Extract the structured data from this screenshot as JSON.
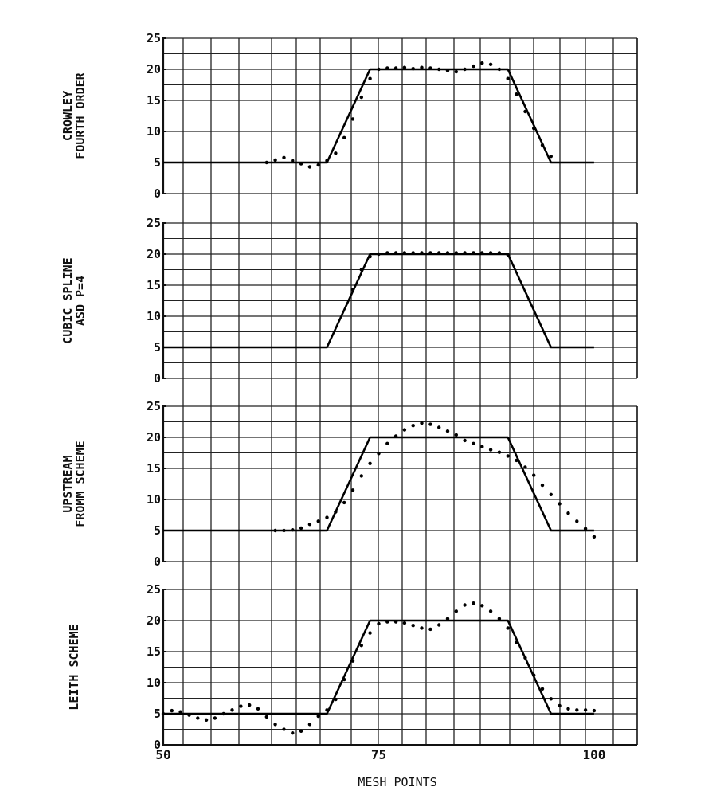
{
  "chart_data": {
    "type": "line",
    "xlabel": "MESH POINTS",
    "x_ticks": [
      "50",
      "75",
      "100"
    ],
    "xlim": [
      50,
      105
    ],
    "grid": true,
    "exact_solution": {
      "x": [
        50,
        69,
        74,
        90,
        95,
        100
      ],
      "y": [
        5,
        5,
        20,
        20,
        5,
        5
      ]
    },
    "panels": [
      {
        "label_lines": [
          "CROWLEY",
          "FOURTH ORDER"
        ],
        "ylim": [
          0,
          25
        ],
        "y_ticks": [
          "0",
          "5",
          "10",
          "15",
          "20",
          "25"
        ],
        "points": {
          "x": [
            62,
            63,
            64,
            65,
            66,
            67,
            68,
            69,
            70,
            71,
            72,
            73,
            74,
            75,
            76,
            77,
            78,
            79,
            80,
            81,
            82,
            83,
            84,
            85,
            86,
            87,
            88,
            89,
            90,
            91,
            92,
            93,
            94,
            95
          ],
          "y": [
            5.0,
            5.4,
            5.8,
            5.3,
            4.8,
            4.3,
            4.6,
            5.3,
            6.5,
            9.0,
            12.0,
            15.5,
            18.5,
            20.0,
            20.2,
            20.2,
            20.3,
            20.1,
            20.3,
            20.2,
            20.0,
            19.8,
            19.6,
            20.0,
            20.5,
            21.0,
            20.8,
            20.0,
            18.5,
            16.0,
            13.2,
            10.5,
            7.8,
            6.0
          ]
        }
      },
      {
        "label_lines": [
          "CUBIC SPLINE",
          "ASD   P=4"
        ],
        "ylim": [
          0,
          25
        ],
        "y_ticks": [
          "0",
          "5",
          "10",
          "15",
          "20",
          "25"
        ],
        "points": {
          "x": [
            72,
            73,
            74,
            75,
            76,
            77,
            78,
            79,
            80,
            81,
            82,
            83,
            84,
            85,
            86,
            87,
            88,
            89,
            90
          ],
          "y": [
            14.3,
            17.5,
            19.6,
            20.0,
            20.2,
            20.2,
            20.2,
            20.2,
            20.2,
            20.2,
            20.2,
            20.2,
            20.2,
            20.2,
            20.2,
            20.2,
            20.2,
            20.2,
            19.9
          ]
        }
      },
      {
        "label_lines": [
          "UPSTREAM",
          "FROMM SCHEME"
        ],
        "ylim": [
          0,
          25
        ],
        "y_ticks": [
          "0",
          "5",
          "10",
          "15",
          "20",
          "25"
        ],
        "points": {
          "x": [
            63,
            64,
            65,
            66,
            67,
            68,
            69,
            70,
            71,
            72,
            73,
            74,
            75,
            76,
            77,
            78,
            79,
            80,
            81,
            82,
            83,
            84,
            85,
            86,
            87,
            88,
            89,
            90,
            91,
            92,
            93,
            94,
            95,
            96,
            97,
            98,
            99,
            100
          ],
          "y": [
            5.0,
            5.0,
            5.1,
            5.4,
            6.0,
            6.5,
            7.1,
            8.0,
            9.5,
            11.5,
            13.8,
            15.8,
            17.4,
            19.0,
            20.2,
            21.2,
            21.9,
            22.3,
            22.1,
            21.6,
            21.0,
            20.4,
            19.5,
            19.0,
            18.5,
            18.0,
            17.6,
            17.0,
            16.3,
            15.2,
            13.9,
            12.3,
            10.8,
            9.3,
            7.8,
            6.5,
            5.3,
            4.0
          ]
        }
      },
      {
        "label_lines": [
          "LEITH SCHEME"
        ],
        "ylim": [
          0,
          25
        ],
        "y_ticks": [
          "0",
          "5",
          "10",
          "15",
          "20",
          "25"
        ],
        "points": {
          "x": [
            50,
            51,
            52,
            53,
            54,
            55,
            56,
            57,
            58,
            59,
            60,
            61,
            62,
            63,
            64,
            65,
            66,
            67,
            68,
            69,
            70,
            71,
            72,
            73,
            74,
            75,
            76,
            77,
            78,
            79,
            80,
            81,
            82,
            83,
            84,
            85,
            86,
            87,
            88,
            89,
            90,
            91,
            92,
            93,
            94,
            95,
            96,
            97,
            98,
            99,
            100
          ],
          "y": [
            5.0,
            5.5,
            5.3,
            4.8,
            4.3,
            4.0,
            4.3,
            5.0,
            5.6,
            6.2,
            6.4,
            5.8,
            4.5,
            3.3,
            2.5,
            1.9,
            2.2,
            3.3,
            4.6,
            5.6,
            7.3,
            10.5,
            13.5,
            16.0,
            18.0,
            19.5,
            19.8,
            19.8,
            19.6,
            19.2,
            18.8,
            18.6,
            19.3,
            20.3,
            21.5,
            22.5,
            22.8,
            22.4,
            21.5,
            20.3,
            18.8,
            16.5,
            14.0,
            11.2,
            9.0,
            7.4,
            6.3,
            5.8,
            5.6,
            5.6,
            5.5
          ]
        }
      }
    ]
  }
}
